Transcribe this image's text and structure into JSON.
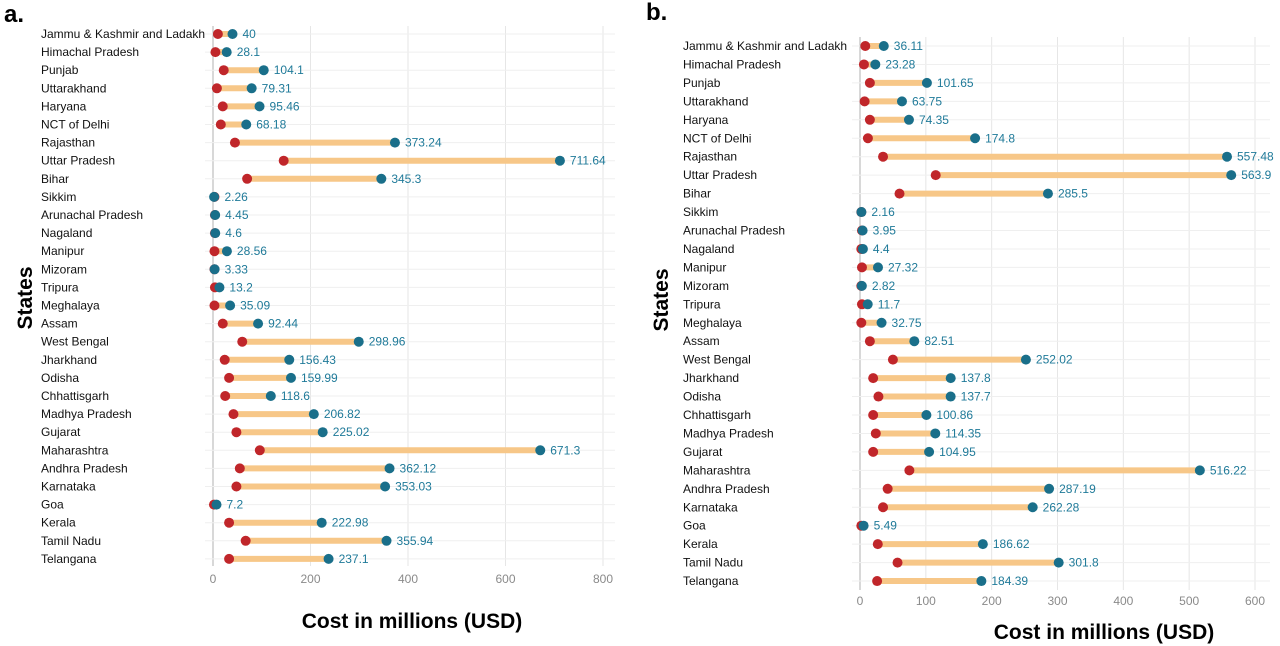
{
  "chart_data": [
    {
      "type": "dumbbell",
      "panel": "a.",
      "xlabel": "Cost in millions (USD)",
      "ylabel": "States",
      "xlim": [
        0,
        800
      ],
      "xticks": [
        0,
        200,
        400,
        600,
        800
      ],
      "grid": true,
      "colors": {
        "start": "#c0262a",
        "end": "#1a6f8a",
        "bar": "#f7c788",
        "label": "#1f7a99"
      },
      "categories": [
        "Jammu & Kashmir and Ladakh",
        "Himachal Pradesh",
        "Punjab",
        "Uttarakhand",
        "Haryana",
        "NCT of Delhi",
        "Rajasthan",
        "Uttar Pradesh",
        "Bihar",
        "Sikkim",
        "Arunachal Pradesh",
        "Nagaland",
        "Manipur",
        "Mizoram",
        "Tripura",
        "Meghalaya",
        "Assam",
        "West Bengal",
        "Jharkhand",
        "Odisha",
        "Chhattisgarh",
        "Madhya Pradesh",
        "Gujarat",
        "Maharashtra",
        "Andhra Pradesh",
        "Karnataka",
        "Goa",
        "Kerala",
        "Tamil Nadu",
        "Telangana"
      ],
      "start_values": [
        10,
        5,
        22,
        8,
        20,
        16,
        45,
        145,
        70,
        3,
        4,
        4,
        3,
        3,
        4,
        3,
        20,
        60,
        24,
        33,
        25,
        42,
        48,
        96,
        55,
        48,
        2,
        33,
        67,
        33
      ],
      "end_values": [
        40,
        28.1,
        104.1,
        79.31,
        95.46,
        68.18,
        373.24,
        711.64,
        345.3,
        2.26,
        4.45,
        4.6,
        28.56,
        3.33,
        13.2,
        35.09,
        92.44,
        298.96,
        156.43,
        159.99,
        118.6,
        206.82,
        225.02,
        671.3,
        362.12,
        353.03,
        7.2,
        222.98,
        355.94,
        237.1
      ],
      "labels": [
        "40",
        "28.1",
        "104.1",
        "79.31",
        "95.46",
        "68.18",
        "373.24",
        "711.64",
        "345.3",
        "2.26",
        "4.45",
        "4.6",
        "28.56",
        "3.33",
        "13.2",
        "35.09",
        "92.44",
        "298.96",
        "156.43",
        "159.99",
        "118.6",
        "206.82",
        "225.02",
        "671.3",
        "362.12",
        "353.03",
        "7.2",
        "222.98",
        "355.94",
        "237.1"
      ]
    },
    {
      "type": "dumbbell",
      "panel": "b.",
      "xlabel": "Cost in millions (USD)",
      "ylabel": "States",
      "xlim": [
        0,
        600
      ],
      "xticks": [
        0,
        100,
        200,
        300,
        400,
        500,
        600
      ],
      "grid": true,
      "colors": {
        "start": "#c0262a",
        "end": "#1a6f8a",
        "bar": "#f7c788",
        "label": "#1f7a99"
      },
      "categories": [
        "Jammu & Kashmir and Ladakh",
        "Himachal Pradesh",
        "Punjab",
        "Uttarakhand",
        "Haryana",
        "NCT of Delhi",
        "Rajasthan",
        "Uttar Pradesh",
        "Bihar",
        "Sikkim",
        "Arunachal Pradesh",
        "Nagaland",
        "Manipur",
        "Mizoram",
        "Tripura",
        "Meghalaya",
        "Assam",
        "West Bengal",
        "Jharkhand",
        "Odisha",
        "Chhattisgarh",
        "Madhya Pradesh",
        "Gujarat",
        "Maharashtra",
        "Andhra Pradesh",
        "Karnataka",
        "Goa",
        "Kerala",
        "Tamil Nadu",
        "Telangana"
      ],
      "start_values": [
        8,
        6,
        15,
        7,
        15,
        12,
        35,
        115,
        60,
        2,
        3,
        2,
        3,
        2,
        3,
        2,
        15,
        50,
        20,
        28,
        20,
        24,
        20,
        75,
        42,
        35,
        2,
        27,
        57,
        26
      ],
      "end_values": [
        36.11,
        23.28,
        101.65,
        63.75,
        74.35,
        174.8,
        557.48,
        563.9,
        285.5,
        2.16,
        3.95,
        4.4,
        27.32,
        2.82,
        11.7,
        32.75,
        82.51,
        252.02,
        137.8,
        137.7,
        100.86,
        114.35,
        104.95,
        516.22,
        287.19,
        262.28,
        5.49,
        186.62,
        301.8,
        184.39
      ],
      "labels": [
        "36.11",
        "23.28",
        "101.65",
        "63.75",
        "74.35",
        "174.8",
        "557.48",
        "563.9",
        "285.5",
        "2.16",
        "3.95",
        "4.4",
        "27.32",
        "2.82",
        "11.7",
        "32.75",
        "82.51",
        "252.02",
        "137.8",
        "137.7",
        "100.86",
        "114.35",
        "104.95",
        "516.22",
        "287.19",
        "262.28",
        "5.49",
        "186.62",
        "301.8",
        "184.39"
      ]
    }
  ]
}
